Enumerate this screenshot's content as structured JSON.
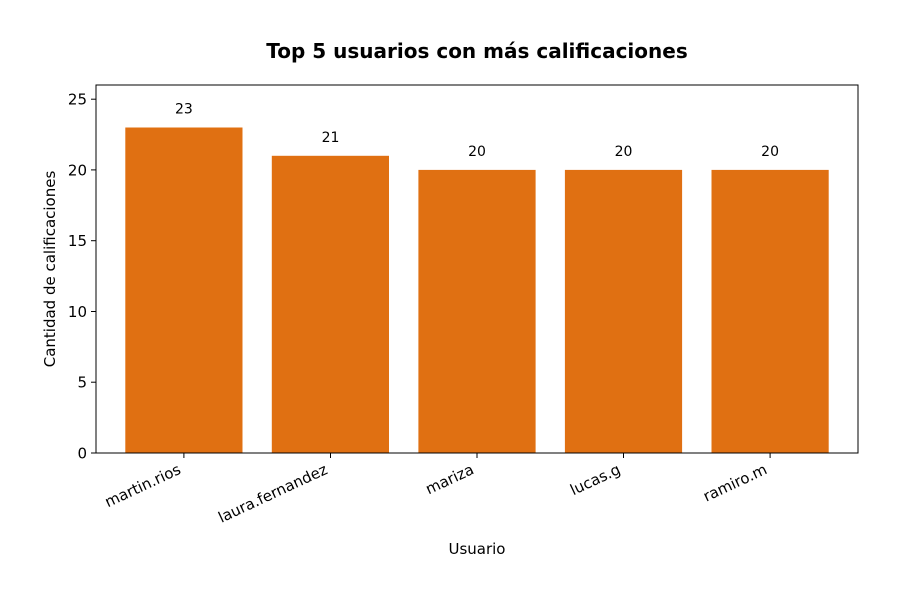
{
  "chart_data": {
    "type": "bar",
    "title": "Top 5 usuarios con más calificaciones",
    "xlabel": "Usuario",
    "ylabel": "Cantidad de calificaciones",
    "categories": [
      "martin.rios",
      "laura.fernandez",
      "mariza",
      "lucas.g",
      "ramiro.m"
    ],
    "values": [
      23,
      21,
      20,
      20,
      20
    ],
    "data_labels": [
      "23",
      "21",
      "20",
      "20",
      "20"
    ],
    "yticks": [
      0,
      5,
      10,
      15,
      20,
      25
    ],
    "ytick_labels": [
      "0",
      "5",
      "10",
      "15",
      "20",
      "25"
    ],
    "ylim": [
      0,
      26
    ],
    "grid": false,
    "bar_color": "#e07012",
    "xtick_rotation": "rotated"
  }
}
